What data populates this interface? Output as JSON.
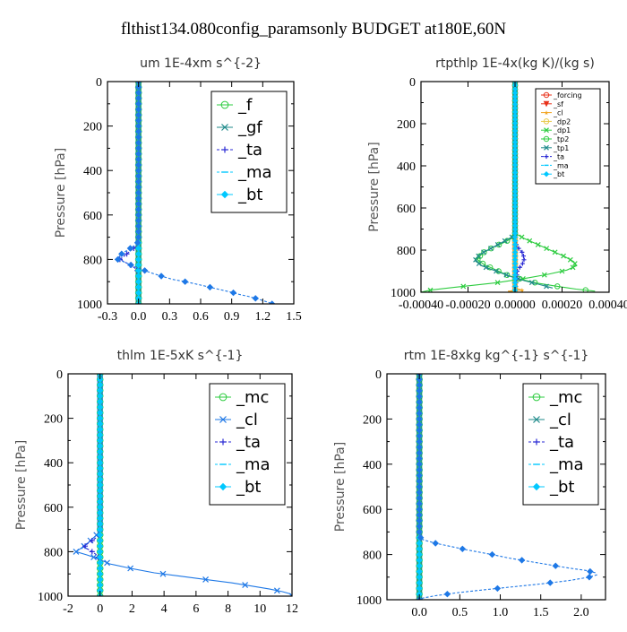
{
  "page_title": "flthist134.080config_paramsonly  BUDGET at180E,60N",
  "colors": {
    "green": "#2ecc40",
    "teal": "#1f8a8a",
    "blue": "#2a2ad4",
    "cyan": "#00c8ff",
    "dodger": "#1e78e6",
    "red": "#e8311a",
    "orange": "#f2a623",
    "gold": "#e8c84a"
  },
  "chart_data": [
    {
      "type": "line",
      "title": "um  1E-4xm s^{-2}",
      "ylabel": "Pressure [hPa]",
      "xlim": [
        -0.3,
        1.5
      ],
      "ylim": [
        1000,
        0
      ],
      "xticks": [
        "-0.3",
        "0.0",
        "0.3",
        "0.6",
        "0.9",
        "1.2",
        "1.5"
      ],
      "yticks": [
        "0",
        "200",
        "400",
        "600",
        "800",
        "1000"
      ],
      "legend_position": "top-right",
      "series": [
        {
          "name": "_f",
          "color": "#2ecc40",
          "marker": "circle",
          "x": [
            0,
            0
          ],
          "y": [
            0,
            1000
          ]
        },
        {
          "name": "_gf",
          "color": "#1f8a8a",
          "marker": "x",
          "x": [
            0,
            0
          ],
          "y": [
            0,
            1000
          ]
        },
        {
          "name": "_ta",
          "color": "#2a2ad4",
          "marker": "plus",
          "x": [
            0,
            0,
            -0.02,
            -0.06,
            -0.1,
            -0.14,
            -0.18,
            -0.12,
            -0.06,
            -0.02,
            0,
            0
          ],
          "y": [
            0,
            730,
            740,
            755,
            770,
            785,
            800,
            815,
            830,
            845,
            860,
            1000
          ]
        },
        {
          "name": "_ma",
          "color": "#00c8ff",
          "marker": "dash",
          "x": [
            0,
            0
          ],
          "y": [
            0,
            1000
          ]
        },
        {
          "name": "_bt",
          "color": "#00c8ff",
          "marker": "diamond",
          "x": [
            0,
            0
          ],
          "y": [
            0,
            1000
          ]
        },
        {
          "name": "",
          "color": "#1e78e6",
          "marker": "diamond",
          "x": [
            0,
            0,
            -0.03,
            -0.08,
            -0.13,
            -0.18,
            -0.2,
            -0.12,
            -0.05,
            0.03,
            0.12,
            0.22,
            0.33,
            0.45,
            0.57,
            0.69,
            0.8,
            0.9,
            0.98,
            1.06,
            1.13,
            1.18,
            1.22,
            1.26,
            1.29
          ],
          "y": [
            0,
            720,
            735,
            750,
            765,
            780,
            800,
            815,
            830,
            845,
            860,
            875,
            890,
            900,
            912,
            925,
            937,
            948,
            958,
            966,
            975,
            982,
            988,
            994,
            1000
          ]
        }
      ]
    },
    {
      "type": "line",
      "title": "rtpthlp  1E-4x(kg K)/(kg s)",
      "ylabel": "Pressure [hPa]",
      "xlim": [
        -0.0004,
        0.0004
      ],
      "ylim": [
        1000,
        0
      ],
      "xticks": [
        "-0.00040",
        "-0.00020",
        "0.00000",
        "0.00020",
        "0.00040"
      ],
      "yticks": [
        "0",
        "200",
        "400",
        "600",
        "800",
        "1000"
      ],
      "legend_position": "top-right",
      "series": [
        {
          "name": "_forcing",
          "color": "#e8311a",
          "marker": "circle",
          "x": [
            0,
            0
          ],
          "y": [
            0,
            1000
          ]
        },
        {
          "name": "_sf",
          "color": "#e8311a",
          "marker": "triangle",
          "x": [
            0,
            0
          ],
          "y": [
            0,
            1000
          ]
        },
        {
          "name": "_cl",
          "color": "#f2a623",
          "marker": "star",
          "x": [
            0,
            0,
            3e-05,
            -3e-05,
            0
          ],
          "y": [
            0,
            980,
            990,
            995,
            1000
          ]
        },
        {
          "name": "_dp2",
          "color": "#e8c84a",
          "marker": "circle",
          "x": [
            0,
            0
          ],
          "y": [
            0,
            1000
          ]
        },
        {
          "name": "_dp1",
          "color": "#2ecc40",
          "marker": "x",
          "x": [
            0,
            0,
            4e-05,
            0.0001,
            0.00016,
            0.00021,
            0.00025,
            0.00026,
            0.00022,
            0.00014,
            4e-05,
            -8e-05,
            -0.00022,
            -0.00036,
            -0.0004
          ],
          "y": [
            0,
            720,
            745,
            775,
            805,
            830,
            855,
            875,
            895,
            915,
            935,
            955,
            972,
            990,
            1000
          ]
        },
        {
          "name": "_tp2",
          "color": "#2ecc40",
          "marker": "circle",
          "x": [
            0,
            0,
            -4e-05,
            -9e-05,
            -0.00014,
            -0.00016,
            -0.00013,
            -8e-05,
            -3e-05,
            3e-05,
            0.0001,
            0.00018,
            0.00026,
            0.00034
          ],
          "y": [
            0,
            735,
            760,
            785,
            815,
            845,
            870,
            895,
            920,
            940,
            958,
            972,
            985,
            995
          ]
        },
        {
          "name": "_tp1",
          "color": "#1f8a8a",
          "marker": "x",
          "x": [
            0,
            0,
            -5e-05,
            -0.0001,
            -0.00015,
            -0.00017,
            -0.00014,
            -8e-05,
            -2e-05,
            4e-05,
            0.0001,
            0.00016
          ],
          "y": [
            0,
            730,
            760,
            790,
            820,
            850,
            875,
            900,
            925,
            945,
            962,
            980
          ]
        },
        {
          "name": "_ta",
          "color": "#2a2ad4",
          "marker": "plus",
          "x": [
            0,
            0,
            1e-05,
            3e-05,
            4e-05,
            3e-05,
            1e-05,
            0
          ],
          "y": [
            0,
            760,
            785,
            810,
            840,
            870,
            895,
            1000
          ]
        },
        {
          "name": "_ma",
          "color": "#00c8ff",
          "marker": "dash",
          "x": [
            0,
            0
          ],
          "y": [
            0,
            1000
          ]
        },
        {
          "name": "_bt",
          "color": "#00c8ff",
          "marker": "diamond",
          "x": [
            0,
            0
          ],
          "y": [
            0,
            1000
          ]
        }
      ]
    },
    {
      "type": "line",
      "title": "thlm  1E-5xK s^{-1}",
      "ylabel": "Pressure [hPa]",
      "xlim": [
        -2,
        12
      ],
      "ylim": [
        1000,
        0
      ],
      "xticks": [
        "-2",
        "0",
        "2",
        "4",
        "6",
        "8",
        "10",
        "12"
      ],
      "yticks": [
        "0",
        "200",
        "400",
        "600",
        "800",
        "1000"
      ],
      "legend_position": "top-right",
      "series": [
        {
          "name": "_mc",
          "color": "#2ecc40",
          "marker": "circle",
          "x": [
            0,
            0
          ],
          "y": [
            0,
            1000
          ]
        },
        {
          "name": "_cl",
          "color": "#1e78e6",
          "marker": "x",
          "x": [
            0,
            0,
            -0.3,
            -0.6,
            -0.9,
            -1.2,
            -1.5,
            -0.8,
            -0.2,
            0.6,
            1.9,
            3.4,
            5.0,
            6.6,
            8.2,
            9.5,
            10.6,
            11.4,
            11.9,
            12
          ],
          "y": [
            0,
            710,
            730,
            750,
            770,
            785,
            800,
            815,
            830,
            855,
            875,
            895,
            910,
            925,
            940,
            955,
            968,
            980,
            990,
            1000
          ]
        },
        {
          "name": "_ta",
          "color": "#2a2ad4",
          "marker": "plus",
          "x": [
            0,
            0,
            -0.2,
            -0.5,
            -0.8,
            -1.0,
            -0.6,
            -0.2,
            0,
            0
          ],
          "y": [
            0,
            720,
            735,
            750,
            765,
            780,
            795,
            815,
            840,
            1000
          ]
        },
        {
          "name": "_ma",
          "color": "#00c8ff",
          "marker": "dash",
          "x": [
            0,
            0
          ],
          "y": [
            0,
            1000
          ]
        },
        {
          "name": "_bt",
          "color": "#00c8ff",
          "marker": "diamond",
          "x": [
            0,
            0
          ],
          "y": [
            0,
            1000
          ]
        }
      ]
    },
    {
      "type": "line",
      "title": "rtm  1E-8xkg kg^{-1} s^{-1}",
      "ylabel": "Pressure [hPa]",
      "xlim": [
        -0.4,
        2.3
      ],
      "ylim": [
        1000,
        0
      ],
      "xticks": [
        "0.0",
        "0.5",
        "1.0",
        "1.5",
        "2.0"
      ],
      "xtick_values": [
        0,
        0.5,
        1.0,
        1.5,
        2.0
      ],
      "yticks": [
        "0",
        "200",
        "400",
        "600",
        "800",
        "1000"
      ],
      "legend_position": "top-right",
      "series": [
        {
          "name": "_mc",
          "color": "#2ecc40",
          "marker": "circle",
          "x": [
            0,
            0
          ],
          "y": [
            0,
            1000
          ]
        },
        {
          "name": "_cl",
          "color": "#1f8a8a",
          "marker": "x",
          "x": [
            0,
            0
          ],
          "y": [
            0,
            1000
          ]
        },
        {
          "name": "_ta",
          "color": "#2a2ad4",
          "marker": "plus",
          "x": [
            0,
            0
          ],
          "y": [
            0,
            1000
          ]
        },
        {
          "name": "_ma",
          "color": "#00c8ff",
          "marker": "dash",
          "x": [
            0,
            0
          ],
          "y": [
            0,
            1000
          ]
        },
        {
          "name": "_bt",
          "color": "#00c8ff",
          "marker": "diamond",
          "x": [
            0,
            0
          ],
          "y": [
            0,
            1000
          ]
        },
        {
          "name": "",
          "color": "#1e78e6",
          "marker": "diamond",
          "x": [
            0,
            0,
            0.05,
            0.2,
            0.4,
            0.6,
            0.9,
            1.1,
            1.35,
            1.6,
            1.85,
            2.05,
            2.17,
            2.19,
            2.1,
            1.85,
            1.5,
            1.1,
            0.75,
            0.45,
            0.2,
            0.05,
            0
          ],
          "y": [
            0,
            720,
            735,
            750,
            765,
            780,
            800,
            815,
            830,
            845,
            860,
            870,
            880,
            890,
            900,
            915,
            930,
            945,
            958,
            970,
            982,
            992,
            1000
          ]
        }
      ]
    }
  ]
}
